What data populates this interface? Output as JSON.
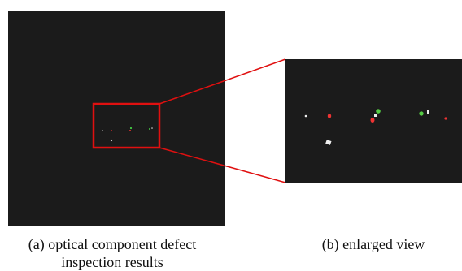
{
  "panels": [
    {
      "caption": [
        "(a) optical component defect",
        "inspection results"
      ]
    },
    {
      "caption": [
        "(b) enlarged view"
      ]
    }
  ]
}
